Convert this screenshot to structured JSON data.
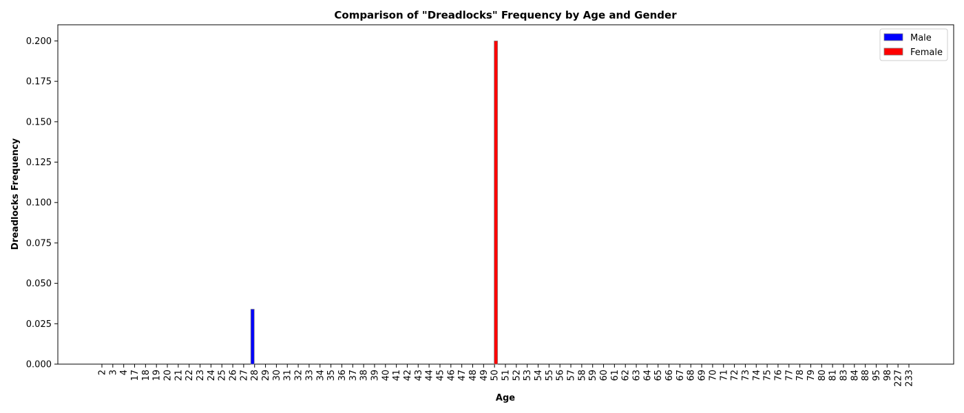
{
  "chart_data": {
    "type": "bar",
    "title": "Comparison of \"Dreadlocks\" Frequency by Age and Gender",
    "xlabel": "Age",
    "ylabel": "Dreadlocks Frequency",
    "ylim": [
      0,
      0.21
    ],
    "yticks": [
      "0.000",
      "0.025",
      "0.050",
      "0.075",
      "0.100",
      "0.125",
      "0.150",
      "0.175",
      "0.200"
    ],
    "categories": [
      "2",
      "3",
      "4",
      "17",
      "18",
      "19",
      "20",
      "21",
      "22",
      "23",
      "24",
      "25",
      "26",
      "27",
      "28",
      "29",
      "30",
      "31",
      "32",
      "33",
      "34",
      "35",
      "36",
      "37",
      "38",
      "39",
      "40",
      "41",
      "42",
      "43",
      "44",
      "45",
      "46",
      "47",
      "48",
      "49",
      "50",
      "51",
      "52",
      "53",
      "54",
      "55",
      "56",
      "57",
      "58",
      "59",
      "60",
      "61",
      "62",
      "63",
      "64",
      "65",
      "66",
      "67",
      "68",
      "69",
      "70",
      "71",
      "72",
      "73",
      "74",
      "75",
      "76",
      "77",
      "78",
      "79",
      "80",
      "81",
      "83",
      "84",
      "88",
      "95",
      "98",
      "227",
      "233"
    ],
    "series": [
      {
        "name": "Male",
        "color": "#0000ff",
        "values": [
          0,
          0,
          0,
          0,
          0,
          0,
          0,
          0,
          0,
          0,
          0,
          0,
          0,
          0,
          0.034,
          0,
          0,
          0,
          0,
          0,
          0,
          0,
          0,
          0,
          0,
          0,
          0,
          0,
          0,
          0,
          0,
          0,
          0,
          0,
          0,
          0,
          0,
          0,
          0,
          0,
          0,
          0,
          0,
          0,
          0,
          0,
          0,
          0,
          0,
          0,
          0,
          0,
          0,
          0,
          0,
          0,
          0,
          0,
          0,
          0,
          0,
          0,
          0,
          0,
          0,
          0,
          0,
          0,
          0,
          0,
          0,
          0,
          0,
          0,
          0
        ]
      },
      {
        "name": "Female",
        "color": "#ff0000",
        "values": [
          0,
          0,
          0,
          0,
          0,
          0,
          0,
          0,
          0,
          0,
          0,
          0,
          0,
          0,
          0,
          0,
          0,
          0,
          0,
          0,
          0,
          0,
          0,
          0,
          0,
          0,
          0,
          0,
          0,
          0,
          0,
          0,
          0,
          0,
          0,
          0,
          0.2,
          0,
          0,
          0,
          0,
          0,
          0,
          0,
          0,
          0,
          0,
          0,
          0,
          0,
          0,
          0,
          0,
          0,
          0,
          0,
          0,
          0,
          0,
          0,
          0,
          0,
          0,
          0,
          0,
          0,
          0,
          0,
          0,
          0,
          0,
          0,
          0,
          0,
          0
        ]
      }
    ],
    "legend_position": "top-right",
    "grid": false
  }
}
